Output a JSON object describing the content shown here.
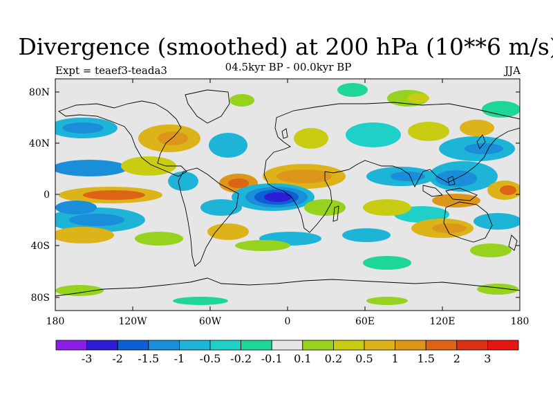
{
  "header": {
    "title": "Divergence (smoothed) at 200 hPa (10**6 m/s)",
    "subtitle": "04.5kyr BP - 00.0kyr BP",
    "left_label": "Expt = teaef3-teada3",
    "right_label": "JJA"
  },
  "axes": {
    "lat_labels": [
      "80N",
      "40N",
      "0",
      "40S",
      "80S"
    ],
    "lon_labels": [
      "180",
      "120W",
      "60W",
      "0",
      "60E",
      "120E",
      "180"
    ]
  },
  "colorbar": {
    "colors": [
      "#8a1ee6",
      "#2d1ed6",
      "#0d5fd6",
      "#1a8ed8",
      "#1eb4d8",
      "#1ed0c8",
      "#1ed696",
      "#e6e6e6",
      "#96d21e",
      "#c8cd14",
      "#dcb41a",
      "#dc961a",
      "#dc6414",
      "#dc3214",
      "#e61414"
    ],
    "labels": [
      "-3",
      "-2",
      "-1.5",
      "-1",
      "-0.5",
      "-0.2",
      "-0.1",
      "0.1",
      "0.2",
      "0.5",
      "1",
      "1.5",
      "2",
      "3"
    ]
  }
}
